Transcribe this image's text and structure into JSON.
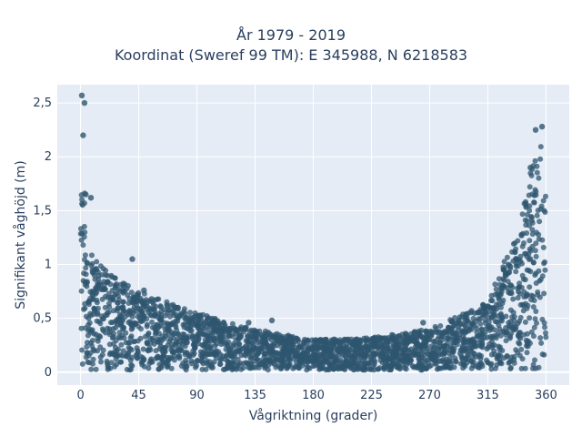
{
  "chart_data": {
    "type": "scatter",
    "title_lines": [
      "År 1979 - 2019",
      "Koordinat (Sweref 99 TM): E 345988, N 6218583"
    ],
    "xlabel": "Vågriktning (grader)",
    "ylabel": "Signifikant våghöjd (m)",
    "xlim": [
      -18,
      378
    ],
    "ylim": [
      -0.12,
      2.67
    ],
    "x_ticks": [
      0,
      45,
      90,
      135,
      180,
      225,
      270,
      315,
      360
    ],
    "x_tick_labels": [
      "0",
      "45",
      "90",
      "135",
      "180",
      "225",
      "270",
      "315",
      "360"
    ],
    "y_ticks": [
      0,
      0.5,
      1,
      1.5,
      2,
      2.5
    ],
    "y_tick_labels": [
      "0",
      "0,5",
      "1",
      "1,5",
      "2",
      "2,5"
    ],
    "grid": true,
    "marker_color": "#2f566f",
    "background_color": "#e5ecf6",
    "envelope_description_points": [
      {
        "x": 0,
        "y_min": 0.0,
        "y_max": 2.57
      },
      {
        "x": 5,
        "y_min": 0.0,
        "y_max": 1.25
      },
      {
        "x": 10,
        "y_min": 0.0,
        "y_max": 1.05
      },
      {
        "x": 20,
        "y_min": 0.0,
        "y_max": 0.95
      },
      {
        "x": 45,
        "y_min": 0.0,
        "y_max": 0.75
      },
      {
        "x": 90,
        "y_min": 0.0,
        "y_max": 0.55
      },
      {
        "x": 135,
        "y_min": 0.0,
        "y_max": 0.4
      },
      {
        "x": 180,
        "y_min": 0.0,
        "y_max": 0.3
      },
      {
        "x": 225,
        "y_min": 0.0,
        "y_max": 0.32
      },
      {
        "x": 270,
        "y_min": 0.0,
        "y_max": 0.4
      },
      {
        "x": 315,
        "y_min": 0.0,
        "y_max": 0.65
      },
      {
        "x": 340,
        "y_min": 0.0,
        "y_max": 1.4
      },
      {
        "x": 355,
        "y_min": 0.0,
        "y_max": 2.28
      },
      {
        "x": 360,
        "y_min": 0.0,
        "y_max": 1.7
      }
    ],
    "outliers": [
      {
        "x": 1,
        "y": 2.57
      },
      {
        "x": 3,
        "y": 2.5
      },
      {
        "x": 2,
        "y": 2.2
      },
      {
        "x": 4,
        "y": 1.65
      },
      {
        "x": 8,
        "y": 1.62
      },
      {
        "x": 40,
        "y": 1.05
      },
      {
        "x": 49,
        "y": 0.76
      },
      {
        "x": 55,
        "y": 0.68
      },
      {
        "x": 130,
        "y": 0.46
      },
      {
        "x": 148,
        "y": 0.48
      },
      {
        "x": 265,
        "y": 0.46
      },
      {
        "x": 287,
        "y": 0.47
      },
      {
        "x": 325,
        "y": 0.72
      },
      {
        "x": 330,
        "y": 0.78
      },
      {
        "x": 352,
        "y": 2.25
      },
      {
        "x": 357,
        "y": 2.28
      },
      {
        "x": 348,
        "y": 1.9
      }
    ]
  }
}
